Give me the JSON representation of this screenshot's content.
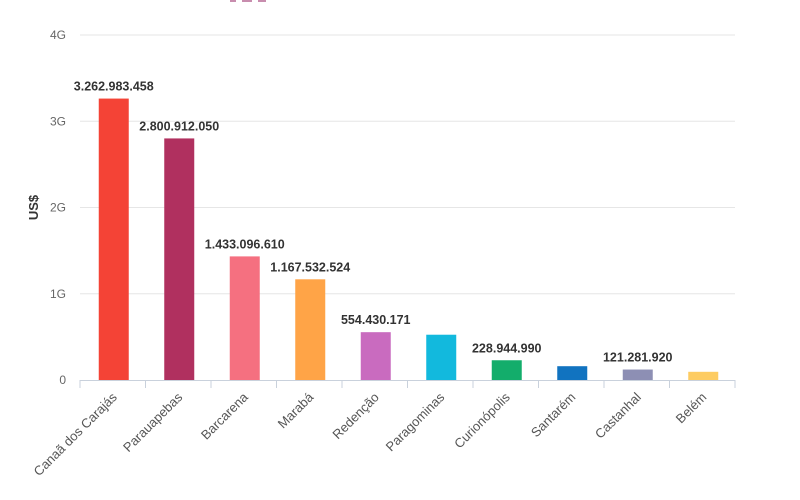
{
  "chart_data": {
    "type": "bar",
    "title": "",
    "xlabel": "",
    "ylabel": "US$",
    "ylim": [
      0,
      4000000000
    ],
    "yticks": [
      {
        "value": 0,
        "label": "0"
      },
      {
        "value": 1000000000,
        "label": "1G"
      },
      {
        "value": 2000000000,
        "label": "2G"
      },
      {
        "value": 3000000000,
        "label": "3G"
      },
      {
        "value": 4000000000,
        "label": "4G"
      }
    ],
    "grid": true,
    "categories": [
      "Canaã dos Carajás",
      "Parauapebas",
      "Barcarena",
      "Marabá",
      "Redenção",
      "Paragominas",
      "Curionópolis",
      "Santarém",
      "Castanhal",
      "Belém"
    ],
    "values": [
      3262983458,
      2800912050,
      1433096610,
      1167532524,
      554430171,
      525000000,
      228944990,
      160000000,
      121281920,
      95000000
    ],
    "data_labels": [
      "3.262.983.458",
      "2.800.912.050",
      "1.433.096.610",
      "1.167.532.524",
      "554.430.171",
      "",
      "228.944.990",
      "",
      "121.281.920",
      ""
    ],
    "colors": [
      "#f44336",
      "#b0305f",
      "#f57080",
      "#ffa447",
      "#c96bbf",
      "#12b9dd",
      "#13ad6b",
      "#1173c0",
      "#8d8fb4",
      "#fdcc62"
    ]
  }
}
